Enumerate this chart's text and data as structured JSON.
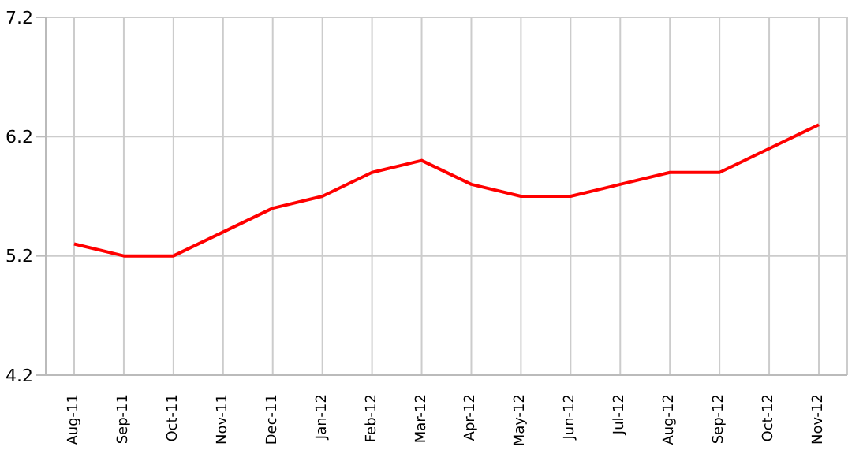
{
  "chart_data": {
    "type": "line",
    "categories": [
      "Aug-11",
      "Sep-11",
      "Oct-11",
      "Nov-11",
      "Dec-11",
      "Jan-12",
      "Feb-12",
      "Mar-12",
      "Apr-12",
      "May-12",
      "Jun-12",
      "Jul-12",
      "Aug-12",
      "Sep-12",
      "Oct-12",
      "Nov-12"
    ],
    "series": [
      {
        "color": "#ff0000",
        "values": [
          5.3,
          5.2,
          5.2,
          5.4,
          5.6,
          5.7,
          5.9,
          6.0,
          5.8,
          5.7,
          5.7,
          5.8,
          5.9,
          5.9,
          6.1,
          6.3
        ]
      }
    ],
    "ylim": [
      4.2,
      7.2
    ],
    "yticks": [
      4.2,
      5.2,
      6.2,
      7.2
    ],
    "grid": true,
    "marker": "none",
    "line_style": "solid"
  }
}
